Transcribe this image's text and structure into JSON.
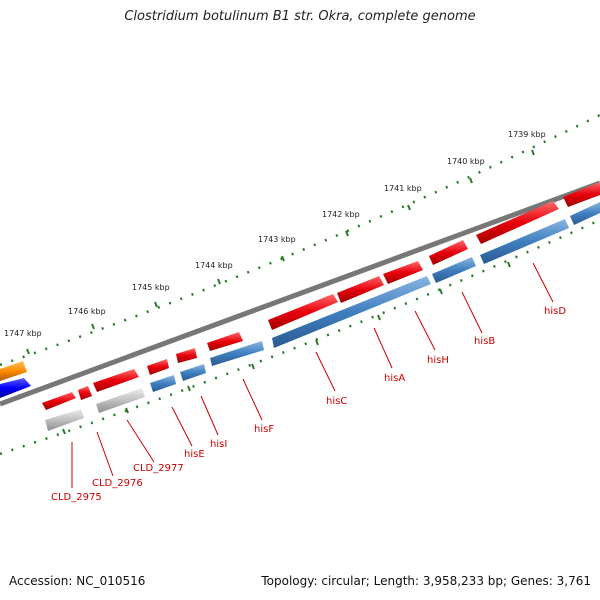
{
  "title": "Clostridium botulinum B1 str. Okra, complete genome",
  "accession": "Accession: NC_010516",
  "topology": "Topology: circular; Length: 3,958,233 bp; Genes: 3,761",
  "scale_labels": [
    "1739 kbp",
    "1740 kbp",
    "1741 kbp",
    "1742 kbp",
    "1743 kbp",
    "1744 kbp",
    "1745 kbp",
    "1746 kbp",
    "1747 kbp"
  ],
  "gene_labels": [
    "CLD_2975",
    "CLD_2976",
    "CLD_2977",
    "hisE",
    "hisI",
    "hisF",
    "hisC",
    "hisA",
    "hisH",
    "hisB",
    "hisD"
  ],
  "colors": {
    "forward_gene": "#e8000b",
    "cds": "#3f7fc0",
    "gray_feature": "#c0c0c0",
    "other_orange": "#ff8c00",
    "other_blue": "#0000ff",
    "backbone": "#777777",
    "scale": "#2a7a2a",
    "label_red": "#cc0000"
  }
}
